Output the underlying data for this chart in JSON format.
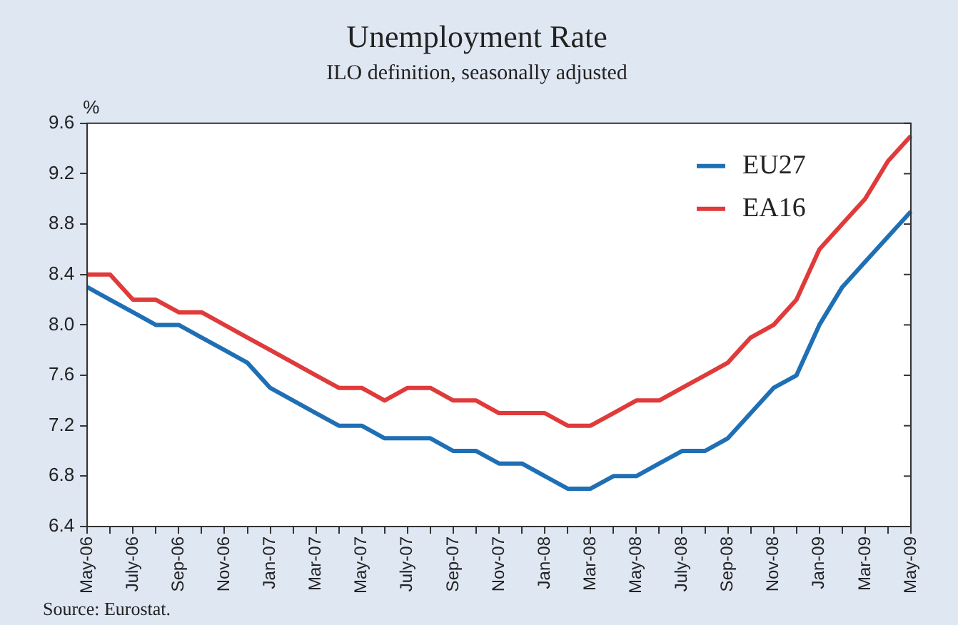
{
  "chart_data": {
    "type": "line",
    "title": "Unemployment Rate",
    "subtitle": "ILO definition, seasonally adjusted",
    "ylabel": "%",
    "categories": [
      "May-06",
      null,
      "July-06",
      null,
      "Sep-06",
      null,
      "Nov-06",
      null,
      "Jan-07",
      null,
      "Mar-07",
      null,
      "May-07",
      null,
      "July-07",
      null,
      "Sep-07",
      null,
      "Nov-07",
      null,
      "Jan-08",
      null,
      "Mar-08",
      null,
      "May-08",
      null,
      "July-08",
      null,
      "Sep-08",
      null,
      "Nov-08",
      null,
      "Jan-09",
      null,
      "Mar-09",
      null,
      "May-09"
    ],
    "series": [
      {
        "name": "EU27",
        "color": "#1f6fb5",
        "values": [
          8.3,
          8.2,
          8.1,
          8.0,
          8.0,
          7.9,
          7.8,
          7.7,
          7.5,
          7.4,
          7.3,
          7.2,
          7.2,
          7.1,
          7.1,
          7.1,
          7.0,
          7.0,
          6.9,
          6.9,
          6.8,
          6.7,
          6.7,
          6.8,
          6.8,
          6.9,
          7.0,
          7.0,
          7.1,
          7.3,
          7.5,
          7.6,
          8.0,
          8.3,
          8.5,
          8.7,
          8.9
        ]
      },
      {
        "name": "EA16",
        "color": "#e03a3a",
        "values": [
          8.4,
          8.4,
          8.2,
          8.2,
          8.1,
          8.1,
          8.0,
          7.9,
          7.8,
          7.7,
          7.6,
          7.5,
          7.5,
          7.4,
          7.5,
          7.5,
          7.4,
          7.4,
          7.3,
          7.3,
          7.3,
          7.2,
          7.2,
          7.3,
          7.4,
          7.4,
          7.5,
          7.6,
          7.7,
          7.9,
          8.0,
          8.2,
          8.6,
          8.8,
          9.0,
          9.3,
          9.5
        ]
      }
    ],
    "ylim": [
      6.4,
      9.6
    ],
    "yticks": [
      6.4,
      6.8,
      7.2,
      7.6,
      {
        "value": 8,
        "label": "8.0"
      },
      8.4,
      8.8,
      9.2,
      9.6
    ],
    "grid": false,
    "legend": "top right",
    "marker": "none",
    "line_style": "solid",
    "annotations": [
      "Source: Eurostat."
    ]
  }
}
